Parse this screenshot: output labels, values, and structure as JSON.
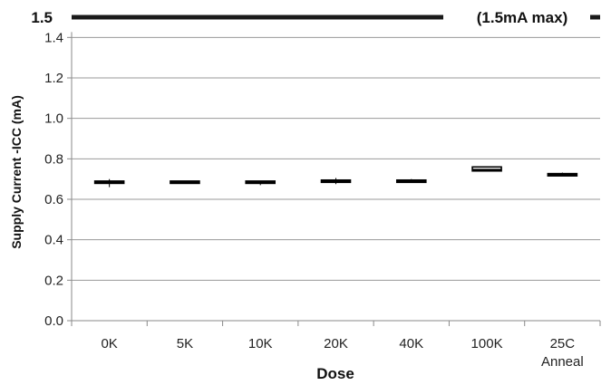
{
  "chart_data": {
    "type": "box",
    "xlabel": "Dose",
    "ylabel": "Supply Current -ICC (mA)",
    "ylim": [
      0,
      1.5
    ],
    "yticks": [
      "0.0",
      "0.2",
      "0.4",
      "0.6",
      "0.8",
      "1.0",
      "1.2",
      "1.4"
    ],
    "categories": [
      {
        "line1": "0K",
        "line2": ""
      },
      {
        "line1": "5K",
        "line2": ""
      },
      {
        "line1": "10K",
        "line2": ""
      },
      {
        "line1": "20K",
        "line2": ""
      },
      {
        "line1": "40K",
        "line2": ""
      },
      {
        "line1": "100K",
        "line2": ""
      },
      {
        "line1": "25C",
        "line2": "Anneal"
      }
    ],
    "boxes": [
      {
        "min": 0.66,
        "q1": 0.68,
        "median": 0.685,
        "q3": 0.69,
        "max": 0.7
      },
      {
        "min": 0.68,
        "q1": 0.68,
        "median": 0.685,
        "q3": 0.69,
        "max": 0.69
      },
      {
        "min": 0.67,
        "q1": 0.68,
        "median": 0.685,
        "q3": 0.69,
        "max": 0.69
      },
      {
        "min": 0.675,
        "q1": 0.69,
        "median": 0.692,
        "q3": 0.695,
        "max": 0.705
      },
      {
        "min": 0.688,
        "q1": 0.69,
        "median": 0.692,
        "q3": 0.695,
        "max": 0.7
      },
      {
        "min": 0.738,
        "q1": 0.74,
        "median": 0.745,
        "q3": 0.76,
        "max": 0.762
      },
      {
        "min": 0.718,
        "q1": 0.72,
        "median": 0.722,
        "q3": 0.727,
        "max": 0.732
      }
    ],
    "limit": {
      "value": 1.5,
      "value_label": "1.5",
      "text": "(1.5mA max)"
    },
    "grid": true,
    "colors": {
      "box": "#000000",
      "grid": "#999999",
      "limit": "#1a1a1a"
    }
  }
}
